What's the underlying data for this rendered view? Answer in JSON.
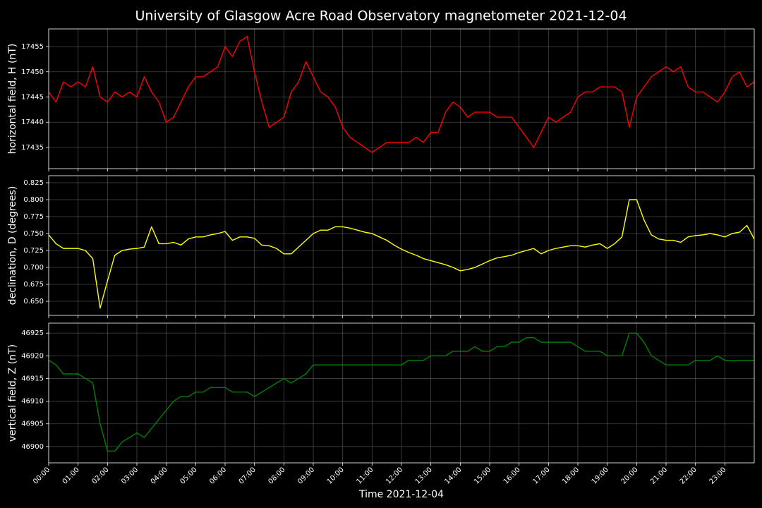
{
  "title": "University of Glasgow Acre Road Observatory magnetometer 2021-12-04",
  "chart_data": [
    {
      "type": "line",
      "ylabel": "horizontal field, H (nT)",
      "color": "#ff0000",
      "grid": true,
      "xlim": [
        0,
        24
      ],
      "xticks": [
        0,
        1,
        2,
        3,
        4,
        5,
        6,
        7,
        8,
        9,
        10,
        11,
        12,
        13,
        14,
        15,
        16,
        17,
        18,
        19,
        20,
        21,
        22,
        23
      ],
      "ylim": [
        17430.8,
        17458.5
      ],
      "yticks": [
        17435,
        17440,
        17445,
        17450,
        17455
      ],
      "x": [
        0,
        0.25,
        0.5,
        0.75,
        1,
        1.25,
        1.5,
        1.75,
        2,
        2.25,
        2.5,
        2.75,
        3,
        3.25,
        3.5,
        3.75,
        4,
        4.25,
        4.5,
        4.75,
        5,
        5.25,
        5.5,
        5.75,
        6,
        6.25,
        6.5,
        6.75,
        7,
        7.25,
        7.5,
        7.75,
        8,
        8.25,
        8.5,
        8.75,
        9,
        9.25,
        9.5,
        9.75,
        10,
        10.25,
        10.5,
        10.75,
        11,
        11.25,
        11.5,
        11.75,
        12,
        12.25,
        12.5,
        12.75,
        13,
        13.25,
        13.5,
        13.75,
        14,
        14.25,
        14.5,
        14.75,
        15,
        15.25,
        15.5,
        15.75,
        16,
        16.25,
        16.5,
        16.75,
        17,
        17.25,
        17.5,
        17.75,
        18,
        18.25,
        18.5,
        18.75,
        19,
        19.25,
        19.5,
        19.75,
        20,
        20.25,
        20.5,
        20.75,
        21,
        21.25,
        21.5,
        21.75,
        22,
        22.25,
        22.5,
        22.75,
        23,
        23.25,
        23.5,
        23.75,
        24
      ],
      "values": [
        17446,
        17444,
        17448,
        17447,
        17448,
        17447,
        17451,
        17445,
        17444,
        17446,
        17445,
        17446,
        17445,
        17449,
        17446,
        17444,
        17440,
        17441,
        17444,
        17447,
        17449,
        17449,
        17450,
        17451,
        17455,
        17453,
        17456,
        17457,
        17450,
        17444,
        17439,
        17440,
        17441,
        17446,
        17448,
        17452,
        17449,
        17446,
        17445,
        17443,
        17439,
        17437,
        17436,
        17435,
        17434,
        17435,
        17436,
        17436,
        17436,
        17436,
        17437,
        17436,
        17438,
        17438,
        17442,
        17444,
        17443,
        17441,
        17442,
        17442,
        17442,
        17441,
        17441,
        17441,
        17439,
        17437,
        17435,
        17438,
        17441,
        17440,
        17441,
        17442,
        17445,
        17446,
        17446,
        17447,
        17447,
        17447,
        17446,
        17439,
        17445,
        17447,
        17449,
        17450,
        17451,
        17450,
        17451,
        17447,
        17446,
        17446,
        17445,
        17444,
        17446,
        17449,
        17450,
        17447,
        17448
      ]
    },
    {
      "type": "line",
      "ylabel": "declination, D (degrees)",
      "color": "#ffff00",
      "grid": true,
      "xlim": [
        0,
        24
      ],
      "xticks": [
        0,
        1,
        2,
        3,
        4,
        5,
        6,
        7,
        8,
        9,
        10,
        11,
        12,
        13,
        14,
        15,
        16,
        17,
        18,
        19,
        20,
        21,
        22,
        23
      ],
      "ylim": [
        0.6292,
        0.8354
      ],
      "yticks": [
        {
          "value": 0.65,
          "label": "0.650"
        },
        0.675,
        {
          "value": 0.7,
          "label": "0.700"
        },
        0.725,
        {
          "value": 0.75,
          "label": "0.750"
        },
        0.775,
        {
          "value": 0.8,
          "label": "0.800"
        },
        0.825
      ],
      "x": [
        0,
        0.25,
        0.5,
        0.75,
        1,
        1.25,
        1.5,
        1.75,
        2,
        2.25,
        2.5,
        2.75,
        3,
        3.25,
        3.5,
        3.75,
        4,
        4.25,
        4.5,
        4.75,
        5,
        5.25,
        5.5,
        5.75,
        6,
        6.25,
        6.5,
        6.75,
        7,
        7.25,
        7.5,
        7.75,
        8,
        8.25,
        8.5,
        8.75,
        9,
        9.25,
        9.5,
        9.75,
        10,
        10.25,
        10.5,
        10.75,
        11,
        11.25,
        11.5,
        11.75,
        12,
        12.25,
        12.5,
        12.75,
        13,
        13.25,
        13.5,
        13.75,
        14,
        14.25,
        14.5,
        14.75,
        15,
        15.25,
        15.5,
        15.75,
        16,
        16.25,
        16.5,
        16.75,
        17,
        17.25,
        17.5,
        17.75,
        18,
        18.25,
        18.5,
        18.75,
        19,
        19.25,
        19.5,
        19.75,
        20,
        20.25,
        20.5,
        20.75,
        21,
        21.25,
        21.5,
        21.75,
        22,
        22.25,
        22.5,
        22.75,
        23,
        23.25,
        23.5,
        23.75,
        24
      ],
      "values": [
        0.748,
        0.735,
        0.728,
        0.728,
        0.728,
        0.725,
        0.713,
        0.64,
        0.68,
        0.718,
        0.725,
        0.727,
        0.728,
        0.73,
        0.76,
        0.735,
        0.735,
        0.737,
        0.733,
        0.742,
        0.745,
        0.745,
        0.748,
        0.75,
        0.753,
        0.74,
        0.745,
        0.745,
        0.743,
        0.733,
        0.732,
        0.728,
        0.72,
        0.72,
        0.73,
        0.74,
        0.75,
        0.755,
        0.755,
        0.76,
        0.76,
        0.758,
        0.755,
        0.752,
        0.75,
        0.745,
        0.74,
        0.733,
        0.727,
        0.722,
        0.718,
        0.713,
        0.71,
        0.707,
        0.704,
        0.7,
        0.695,
        0.697,
        0.7,
        0.705,
        0.71,
        0.714,
        0.716,
        0.718,
        0.722,
        0.725,
        0.728,
        0.72,
        0.725,
        0.728,
        0.73,
        0.732,
        0.732,
        0.73,
        0.733,
        0.735,
        0.728,
        0.735,
        0.745,
        0.8,
        0.8,
        0.77,
        0.748,
        0.742,
        0.74,
        0.74,
        0.737,
        0.745,
        0.747,
        0.748,
        0.75,
        0.748,
        0.745,
        0.75,
        0.752,
        0.762,
        0.742
      ]
    },
    {
      "type": "line",
      "ylabel": "vertical field, Z (nT)",
      "x_label": "Time 2021-12-04",
      "color": "#008000",
      "grid": true,
      "xlim": [
        0,
        24
      ],
      "xticks": [
        {
          "value": 0,
          "label": "00:00"
        },
        {
          "value": 1,
          "label": "01:00"
        },
        {
          "value": 2,
          "label": "02:00"
        },
        {
          "value": 3,
          "label": "03:00"
        },
        {
          "value": 4,
          "label": "04:00"
        },
        {
          "value": 5,
          "label": "05:00"
        },
        {
          "value": 6,
          "label": "06:00"
        },
        {
          "value": 7,
          "label": "07:00"
        },
        {
          "value": 8,
          "label": "08:00"
        },
        {
          "value": 9,
          "label": "09:00"
        },
        {
          "value": 10,
          "label": "10:00"
        },
        {
          "value": 11,
          "label": "11:00"
        },
        {
          "value": 12,
          "label": "12:00"
        },
        {
          "value": 13,
          "label": "13:00"
        },
        {
          "value": 14,
          "label": "14:00"
        },
        {
          "value": 15,
          "label": "15:00"
        },
        {
          "value": 16,
          "label": "16:00"
        },
        {
          "value": 17,
          "label": "17:00"
        },
        {
          "value": 18,
          "label": "18:00"
        },
        {
          "value": 19,
          "label": "19:00"
        },
        {
          "value": 20,
          "label": "20:00"
        },
        {
          "value": 21,
          "label": "21:00"
        },
        {
          "value": 22,
          "label": "22:00"
        },
        {
          "value": 23,
          "label": "23:00"
        }
      ],
      "ylim": [
        46896.4,
        46927.2
      ],
      "yticks": [
        46900,
        46905,
        46910,
        46915,
        46920,
        46925
      ],
      "x": [
        0,
        0.25,
        0.5,
        0.75,
        1,
        1.25,
        1.5,
        1.75,
        2,
        2.25,
        2.5,
        2.75,
        3,
        3.25,
        3.5,
        3.75,
        4,
        4.25,
        4.5,
        4.75,
        5,
        5.25,
        5.5,
        5.75,
        6,
        6.25,
        6.5,
        6.75,
        7,
        7.25,
        7.5,
        7.75,
        8,
        8.25,
        8.5,
        8.75,
        9,
        9.25,
        9.5,
        9.75,
        10,
        10.25,
        10.5,
        10.75,
        11,
        11.25,
        11.5,
        11.75,
        12,
        12.25,
        12.5,
        12.75,
        13,
        13.25,
        13.5,
        13.75,
        14,
        14.25,
        14.5,
        14.75,
        15,
        15.25,
        15.5,
        15.75,
        16,
        16.25,
        16.5,
        16.75,
        17,
        17.25,
        17.5,
        17.75,
        18,
        18.25,
        18.5,
        18.75,
        19,
        19.25,
        19.5,
        19.75,
        20,
        20.25,
        20.5,
        20.75,
        21,
        21.25,
        21.5,
        21.75,
        22,
        22.25,
        22.5,
        22.75,
        23,
        23.25,
        23.5,
        23.75,
        24
      ],
      "values": [
        46919,
        46918,
        46916,
        46916,
        46916,
        46915,
        46914,
        46905,
        46899,
        46899,
        46901,
        46902,
        46903,
        46902,
        46904,
        46906,
        46908,
        46910,
        46911,
        46911,
        46912,
        46912,
        46913,
        46913,
        46913,
        46912,
        46912,
        46912,
        46911,
        46912,
        46913,
        46914,
        46915,
        46914,
        46915,
        46916,
        46918,
        46918,
        46918,
        46918,
        46918,
        46918,
        46918,
        46918,
        46918,
        46918,
        46918,
        46918,
        46918,
        46919,
        46919,
        46919,
        46920,
        46920,
        46920,
        46921,
        46921,
        46921,
        46922,
        46921,
        46921,
        46922,
        46922,
        46923,
        46923,
        46924,
        46924,
        46923,
        46923,
        46923,
        46923,
        46923,
        46922,
        46921,
        46921,
        46921,
        46920,
        46920,
        46920,
        46925,
        46925,
        46923,
        46920,
        46919,
        46918,
        46918,
        46918,
        46918,
        46919,
        46919,
        46919,
        46920,
        46919,
        46919,
        46919,
        46919,
        46919
      ]
    }
  ]
}
